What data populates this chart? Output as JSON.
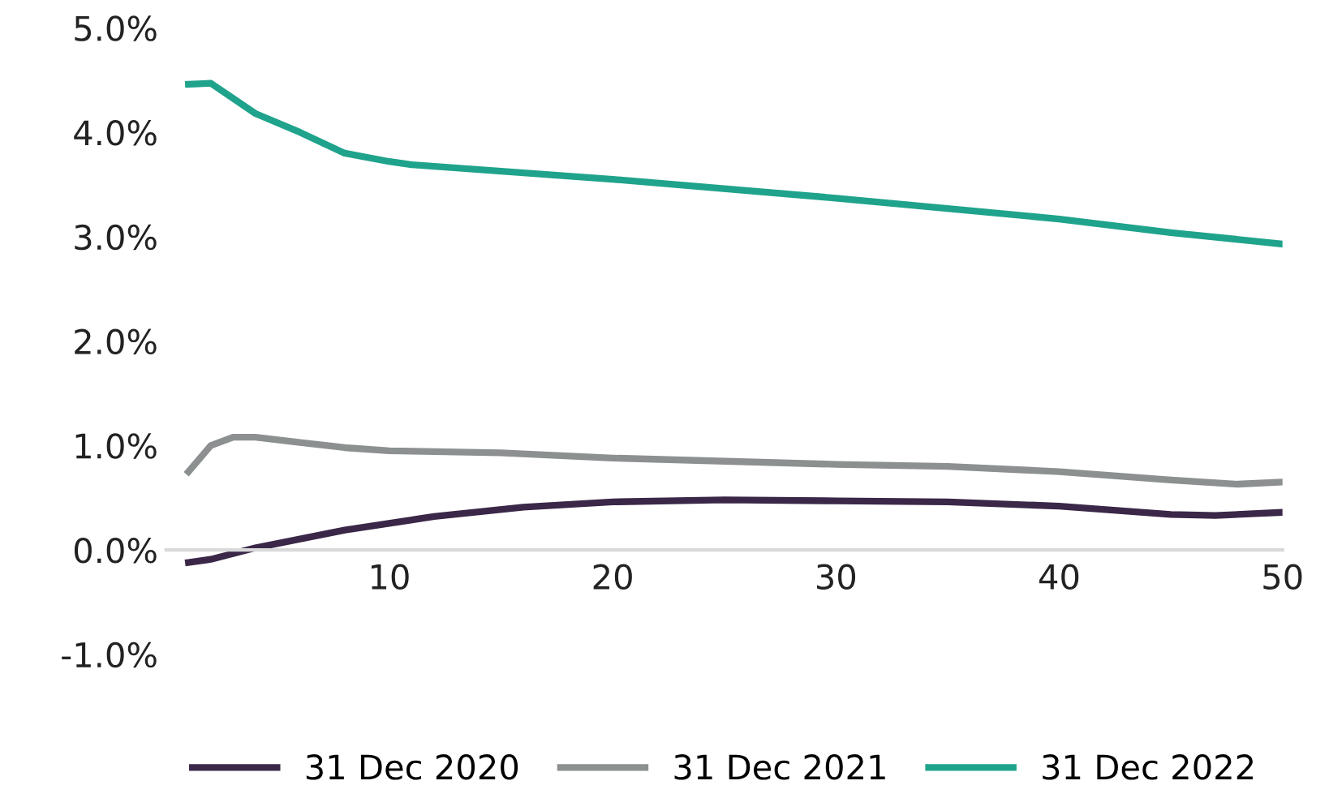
{
  "chart_data": {
    "type": "line",
    "series": [
      {
        "name": "31 Dec 2020",
        "color": "#3b2748",
        "x": [
          1,
          2,
          4,
          8,
          12,
          16,
          20,
          25,
          30,
          35,
          40,
          45,
          47,
          50
        ],
        "values": [
          -0.12,
          -0.09,
          0.02,
          0.19,
          0.32,
          0.41,
          0.46,
          0.48,
          0.47,
          0.46,
          0.42,
          0.34,
          0.33,
          0.36
        ]
      },
      {
        "name": "31 Dec 2021",
        "color": "#8c9091",
        "x": [
          1,
          2,
          3,
          4,
          6,
          8,
          10,
          15,
          20,
          30,
          35,
          40,
          45,
          48,
          50
        ],
        "values": [
          0.75,
          1.0,
          1.08,
          1.08,
          1.03,
          0.98,
          0.95,
          0.93,
          0.88,
          0.82,
          0.8,
          0.75,
          0.67,
          0.63,
          0.65
        ]
      },
      {
        "name": "31 Dec 2022",
        "color": "#1fa38c",
        "x": [
          1,
          2,
          4,
          6,
          8,
          10,
          11,
          20,
          30,
          40,
          45,
          50
        ],
        "values": [
          4.46,
          4.47,
          4.18,
          4.0,
          3.8,
          3.72,
          3.69,
          3.55,
          3.37,
          3.17,
          3.04,
          2.93
        ]
      }
    ],
    "xlim": [
      0,
      50
    ],
    "xticks": [
      10,
      20,
      30,
      40,
      50
    ],
    "ylim": [
      -1,
      5
    ],
    "yticks": [
      {
        "value": -1,
        "label": "-1.0%"
      },
      {
        "value": 0,
        "label": "0.0%"
      },
      {
        "value": 1,
        "label": "1.0%"
      },
      {
        "value": 2,
        "label": "2.0%"
      },
      {
        "value": 3,
        "label": "3.0%"
      },
      {
        "value": 4,
        "label": "4.0%"
      },
      {
        "value": 5,
        "label": "5.0%"
      }
    ],
    "grid": false,
    "legend": "bottom",
    "marker": "none",
    "line_style": "solid"
  }
}
